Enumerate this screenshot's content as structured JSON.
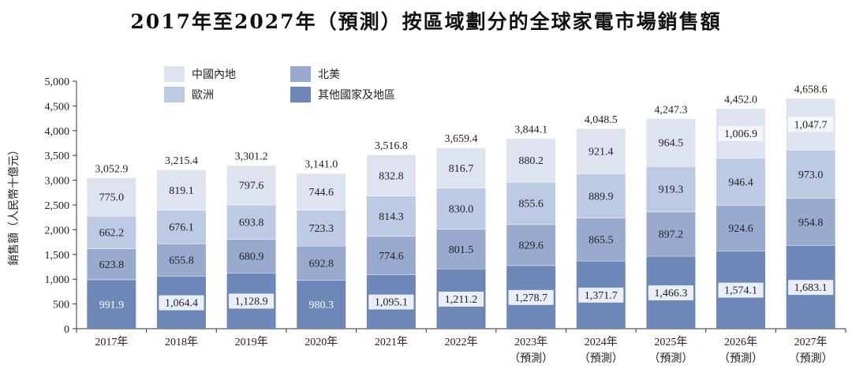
{
  "chart_data": {
    "type": "bar",
    "stacked": true,
    "title": "2017年至2027年（預測）按區域劃分的全球家電市場銷售額",
    "ylabel": "銷售額（人民幣十億元）",
    "xlabel": "",
    "ylim": [
      0,
      5000
    ],
    "yticks": [
      "0",
      "500",
      "1,000",
      "1,500",
      "2,000",
      "2,500",
      "3,000",
      "3,500",
      "4,000",
      "4,500",
      "5,000"
    ],
    "categories": [
      "2017年",
      "2018年",
      "2019年",
      "2020年",
      "2021年",
      "2022年",
      "2023年",
      "2024年",
      "2025年",
      "2026年",
      "2027年"
    ],
    "category_sublabels": [
      "",
      "",
      "",
      "",
      "",
      "",
      "（預測）",
      "（預測）",
      "（預測）",
      "（預測）",
      "（預測）"
    ],
    "legend_position": "top-left",
    "series": [
      {
        "name": "其他國家及地區",
        "color": "#6c87b8",
        "values": [
          991.9,
          1064.4,
          1128.9,
          980.3,
          1095.1,
          1211.2,
          1278.7,
          1371.7,
          1466.3,
          1574.1,
          1683.1
        ],
        "labels": [
          "991.9",
          "1,064.4",
          "1,128.9",
          "980.3",
          "1,095.1",
          "1,211.2",
          "1,278.7",
          "1,371.7",
          "1,466.3",
          "1,574.1",
          "1,683.1"
        ]
      },
      {
        "name": "北美",
        "color": "#98abcf",
        "values": [
          623.8,
          655.8,
          680.9,
          692.8,
          774.6,
          801.5,
          829.6,
          865.5,
          897.2,
          924.6,
          954.8
        ],
        "labels": [
          "623.8",
          "655.8",
          "680.9",
          "692.8",
          "774.6",
          "801.5",
          "829.6",
          "865.5",
          "897.2",
          "924.6",
          "954.8"
        ]
      },
      {
        "name": "歐洲",
        "color": "#bccae3",
        "values": [
          662.2,
          676.1,
          693.8,
          723.3,
          814.3,
          830.0,
          855.6,
          889.9,
          919.3,
          946.4,
          973.0
        ],
        "labels": [
          "662.2",
          "676.1",
          "693.8",
          "723.3",
          "814.3",
          "830.0",
          "855.6",
          "889.9",
          "919.3",
          "946.4",
          "973.0"
        ]
      },
      {
        "name": "中國內地",
        "color": "#dde4f0",
        "values": [
          775.0,
          819.1,
          797.6,
          744.6,
          832.8,
          816.7,
          880.2,
          921.4,
          964.5,
          1006.9,
          1047.7
        ],
        "labels": [
          "775.0",
          "819.1",
          "797.6",
          "744.6",
          "832.8",
          "816.7",
          "880.2",
          "921.4",
          "964.5",
          "1,006.9",
          "1,047.7"
        ]
      }
    ],
    "totals": [
      3052.9,
      3215.4,
      3301.2,
      3141.0,
      3516.8,
      3659.4,
      3844.1,
      4048.5,
      4247.3,
      4452.0,
      4658.6
    ],
    "total_labels": [
      "3,052.9",
      "3,215.4",
      "3,301.2",
      "3,141.0",
      "3,516.8",
      "3,659.4",
      "3,844.1",
      "4,048.5",
      "4,247.3",
      "4,452.0",
      "4,658.6"
    ],
    "legend_order": [
      "中國內地",
      "北美",
      "歐洲",
      "其他國家及地區"
    ]
  }
}
